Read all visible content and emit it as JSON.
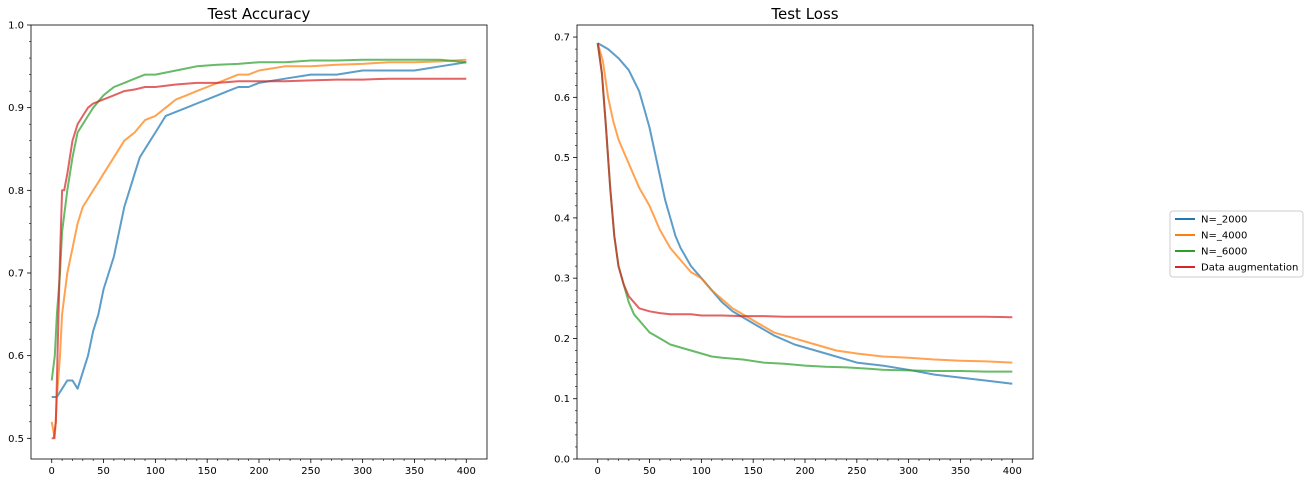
{
  "chart_data": [
    {
      "type": "line",
      "title": "Test Accuracy",
      "xlabel": "",
      "ylabel": "",
      "xlim": [
        -20,
        420
      ],
      "ylim": [
        0.475,
        1.0
      ],
      "xticks": [
        0,
        50,
        100,
        150,
        200,
        250,
        300,
        350,
        400
      ],
      "xtick_labels": [
        "0",
        "50",
        "100",
        "150",
        "200",
        "250",
        "300",
        "350",
        "400"
      ],
      "yticks": [
        0.5,
        0.6,
        0.7,
        0.8,
        0.9,
        1.0
      ],
      "ytick_labels": [
        "0.5",
        "0.6",
        "0.7",
        "0.8",
        "0.9",
        "1.0"
      ],
      "grid": false,
      "series": [
        {
          "name": "N=_2000",
          "color": "#1f77b4",
          "x": [
            0,
            5,
            10,
            15,
            20,
            25,
            30,
            35,
            40,
            45,
            50,
            55,
            60,
            65,
            70,
            75,
            80,
            85,
            90,
            95,
            100,
            110,
            120,
            130,
            140,
            150,
            160,
            170,
            180,
            190,
            200,
            225,
            250,
            275,
            300,
            325,
            350,
            375,
            400
          ],
          "y": [
            0.55,
            0.55,
            0.56,
            0.57,
            0.57,
            0.56,
            0.58,
            0.6,
            0.63,
            0.65,
            0.68,
            0.7,
            0.72,
            0.75,
            0.78,
            0.8,
            0.82,
            0.84,
            0.85,
            0.86,
            0.87,
            0.89,
            0.895,
            0.9,
            0.905,
            0.91,
            0.915,
            0.92,
            0.925,
            0.925,
            0.93,
            0.935,
            0.94,
            0.94,
            0.945,
            0.945,
            0.945,
            0.95,
            0.955
          ]
        },
        {
          "name": "N=_4000",
          "color": "#ff7f0e",
          "x": [
            0,
            3,
            5,
            8,
            10,
            15,
            20,
            25,
            30,
            35,
            40,
            45,
            50,
            60,
            70,
            80,
            90,
            100,
            110,
            120,
            130,
            140,
            150,
            160,
            170,
            180,
            190,
            200,
            225,
            250,
            275,
            300,
            325,
            350,
            375,
            400
          ],
          "y": [
            0.52,
            0.5,
            0.55,
            0.6,
            0.65,
            0.7,
            0.73,
            0.76,
            0.78,
            0.79,
            0.8,
            0.81,
            0.82,
            0.84,
            0.86,
            0.87,
            0.885,
            0.89,
            0.9,
            0.91,
            0.915,
            0.92,
            0.925,
            0.93,
            0.935,
            0.94,
            0.94,
            0.945,
            0.95,
            0.95,
            0.952,
            0.953,
            0.955,
            0.955,
            0.956,
            0.958
          ]
        },
        {
          "name": "N=_6000",
          "color": "#2ca02c",
          "x": [
            0,
            3,
            5,
            8,
            10,
            15,
            20,
            25,
            30,
            35,
            40,
            50,
            60,
            70,
            80,
            90,
            100,
            120,
            140,
            160,
            180,
            200,
            225,
            250,
            275,
            300,
            325,
            350,
            375,
            400
          ],
          "y": [
            0.57,
            0.6,
            0.65,
            0.7,
            0.75,
            0.8,
            0.84,
            0.87,
            0.88,
            0.89,
            0.9,
            0.915,
            0.925,
            0.93,
            0.935,
            0.94,
            0.94,
            0.945,
            0.95,
            0.952,
            0.953,
            0.955,
            0.955,
            0.957,
            0.957,
            0.958,
            0.958,
            0.958,
            0.958,
            0.955
          ]
        },
        {
          "name": "Data augmentation",
          "color": "#d62728",
          "x": [
            0,
            2,
            4,
            6,
            8,
            10,
            12,
            15,
            20,
            25,
            30,
            35,
            40,
            50,
            60,
            70,
            80,
            90,
            100,
            120,
            140,
            160,
            180,
            200,
            225,
            250,
            275,
            300,
            325,
            350,
            375,
            400
          ],
          "y": [
            0.5,
            0.5,
            0.52,
            0.62,
            0.72,
            0.8,
            0.8,
            0.82,
            0.86,
            0.88,
            0.89,
            0.9,
            0.905,
            0.91,
            0.915,
            0.92,
            0.922,
            0.925,
            0.925,
            0.928,
            0.93,
            0.93,
            0.932,
            0.932,
            0.932,
            0.933,
            0.934,
            0.934,
            0.935,
            0.935,
            0.935,
            0.935
          ]
        }
      ]
    },
    {
      "type": "line",
      "title": "Test Loss",
      "xlabel": "",
      "ylabel": "",
      "xlim": [
        -20,
        420
      ],
      "ylim": [
        0.0,
        0.72
      ],
      "xticks": [
        0,
        50,
        100,
        150,
        200,
        250,
        300,
        350,
        400
      ],
      "xtick_labels": [
        "0",
        "50",
        "100",
        "150",
        "200",
        "250",
        "300",
        "350",
        "400"
      ],
      "yticks": [
        0.0,
        0.1,
        0.2,
        0.3,
        0.4,
        0.5,
        0.6,
        0.7
      ],
      "ytick_labels": [
        "0.0",
        "0.1",
        "0.2",
        "0.3",
        "0.4",
        "0.5",
        "0.6",
        "0.7"
      ],
      "grid": false,
      "series": [
        {
          "name": "N=_2000",
          "color": "#1f77b4",
          "x": [
            0,
            10,
            20,
            30,
            40,
            45,
            50,
            55,
            60,
            65,
            70,
            75,
            80,
            90,
            100,
            110,
            120,
            130,
            140,
            150,
            170,
            190,
            210,
            230,
            250,
            275,
            300,
            325,
            350,
            375,
            400
          ],
          "y": [
            0.69,
            0.68,
            0.665,
            0.645,
            0.61,
            0.58,
            0.55,
            0.51,
            0.47,
            0.43,
            0.4,
            0.37,
            0.35,
            0.32,
            0.3,
            0.28,
            0.26,
            0.245,
            0.235,
            0.225,
            0.205,
            0.19,
            0.18,
            0.17,
            0.16,
            0.155,
            0.148,
            0.14,
            0.135,
            0.13,
            0.125
          ]
        },
        {
          "name": "N=_4000",
          "color": "#ff7f0e",
          "x": [
            0,
            5,
            10,
            15,
            20,
            25,
            30,
            35,
            40,
            50,
            60,
            70,
            80,
            90,
            100,
            110,
            120,
            130,
            140,
            150,
            170,
            190,
            210,
            230,
            250,
            275,
            300,
            325,
            350,
            375,
            400
          ],
          "y": [
            0.69,
            0.66,
            0.6,
            0.56,
            0.53,
            0.51,
            0.49,
            0.47,
            0.45,
            0.42,
            0.38,
            0.35,
            0.33,
            0.31,
            0.3,
            0.28,
            0.265,
            0.25,
            0.24,
            0.23,
            0.21,
            0.2,
            0.19,
            0.18,
            0.175,
            0.17,
            0.168,
            0.165,
            0.163,
            0.162,
            0.16
          ]
        },
        {
          "name": "N=_6000",
          "color": "#2ca02c",
          "x": [
            0,
            4,
            8,
            12,
            16,
            20,
            25,
            30,
            35,
            40,
            50,
            60,
            70,
            80,
            90,
            100,
            110,
            120,
            140,
            160,
            180,
            200,
            220,
            240,
            260,
            275,
            300,
            325,
            350,
            375,
            400
          ],
          "y": [
            0.69,
            0.64,
            0.55,
            0.45,
            0.37,
            0.32,
            0.29,
            0.26,
            0.24,
            0.23,
            0.21,
            0.2,
            0.19,
            0.185,
            0.18,
            0.175,
            0.17,
            0.168,
            0.165,
            0.16,
            0.158,
            0.155,
            0.153,
            0.152,
            0.15,
            0.148,
            0.147,
            0.146,
            0.146,
            0.145,
            0.145
          ]
        },
        {
          "name": "Data augmentation",
          "color": "#d62728",
          "x": [
            0,
            4,
            8,
            12,
            16,
            20,
            25,
            30,
            35,
            40,
            50,
            60,
            70,
            80,
            90,
            100,
            120,
            140,
            160,
            180,
            200,
            225,
            250,
            275,
            300,
            325,
            350,
            375,
            400
          ],
          "y": [
            0.69,
            0.64,
            0.55,
            0.45,
            0.37,
            0.32,
            0.29,
            0.27,
            0.26,
            0.25,
            0.245,
            0.242,
            0.24,
            0.24,
            0.24,
            0.238,
            0.238,
            0.237,
            0.237,
            0.236,
            0.236,
            0.236,
            0.236,
            0.236,
            0.236,
            0.236,
            0.236,
            0.236,
            0.235
          ]
        }
      ]
    }
  ],
  "legend": {
    "placement": "center-right",
    "entries": [
      {
        "label": "N=_2000",
        "color": "#1f77b4"
      },
      {
        "label": "N=_4000",
        "color": "#ff7f0e"
      },
      {
        "label": "N=_6000",
        "color": "#2ca02c"
      },
      {
        "label": "Data augmentation",
        "color": "#d62728"
      }
    ]
  }
}
